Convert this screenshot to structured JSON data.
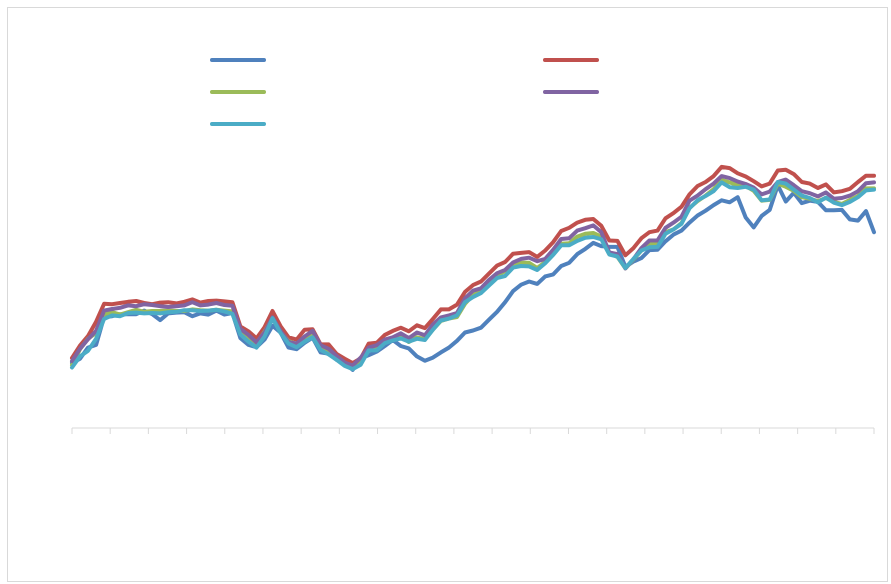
{
  "chart_data": {
    "type": "line",
    "title": "",
    "xlabel": "",
    "ylabel": "",
    "ylim": [
      0,
      100
    ],
    "x": [
      0,
      1,
      2,
      3,
      4,
      5,
      6,
      7,
      8,
      9,
      10,
      11,
      12,
      13,
      14,
      15,
      16,
      17,
      18,
      19,
      20,
      21,
      22,
      23,
      24,
      25,
      26,
      27,
      28,
      29,
      30,
      31,
      32,
      33,
      34,
      35,
      36,
      37,
      38,
      39,
      40,
      41,
      42,
      43,
      44,
      45,
      46,
      47,
      48,
      49,
      50,
      51,
      52,
      53,
      54,
      55,
      56,
      57,
      58,
      59,
      60,
      61,
      62,
      63,
      64,
      65,
      66,
      67,
      68,
      69,
      70,
      71,
      72,
      73,
      74,
      75,
      76,
      77,
      78,
      79,
      80,
      81,
      82,
      83,
      84,
      85,
      86,
      87,
      88,
      89,
      90,
      91,
      92,
      93,
      94,
      95,
      96,
      97,
      98,
      99,
      100
    ],
    "x_tick_count": 22,
    "grid": false,
    "legend_position": "top",
    "series": [
      {
        "color": "#4f81bd",
        "values": [
          16.3,
          17.4,
          20.2,
          20.9,
          27.9,
          28.1,
          28.6,
          28.6,
          28.6,
          29.5,
          28.6,
          27.1,
          28.8,
          29.0,
          29.1,
          28.1,
          28.8,
          28.5,
          29.5,
          28.5,
          28.9,
          22.6,
          20.9,
          20.3,
          22.2,
          25.7,
          24.0,
          20.2,
          19.8,
          21.4,
          22.7,
          19.0,
          18.7,
          17.1,
          16.4,
          14.6,
          17.5,
          18.3,
          19.2,
          20.6,
          22.1,
          20.6,
          20.0,
          18.0,
          16.9,
          17.7,
          19.0,
          20.2,
          21.9,
          24.0,
          24.5,
          25.2,
          27.2,
          29.2,
          31.6,
          34.4,
          36.0,
          36.8,
          36.2,
          38.1,
          38.6,
          40.7,
          41.5,
          43.7,
          45.0,
          46.5,
          45.7,
          45.5,
          45.5,
          40.5,
          41.8,
          42.7,
          44.7,
          44.8,
          46.9,
          48.6,
          49.6,
          51.6,
          53.4,
          54.6,
          56.0,
          57.2,
          56.7,
          58.0,
          52.9,
          50.4,
          53.3,
          54.8,
          61.0,
          56.9,
          59.1,
          56.5,
          57.1,
          56.8,
          54.7,
          54.7,
          54.8,
          52.4,
          52.1,
          54.5,
          49.2
        ]
      },
      {
        "color": "#c0504d",
        "values": [
          17.6,
          20.7,
          23.1,
          26.7,
          31.2,
          31.1,
          31.4,
          31.7,
          31.9,
          31.4,
          31.1,
          31.5,
          31.6,
          31.3,
          31.7,
          32.3,
          31.5,
          31.9,
          32.0,
          31.8,
          31.6,
          25.5,
          24.3,
          22.5,
          25.3,
          29.4,
          25.6,
          22.8,
          22.2,
          24.7,
          24.8,
          21.0,
          21.0,
          18.6,
          17.4,
          16.3,
          17.5,
          21.2,
          21.4,
          23.4,
          24.4,
          25.2,
          24.3,
          25.8,
          25.1,
          27.4,
          29.8,
          29.8,
          31.0,
          34.2,
          35.9,
          36.8,
          38.8,
          40.8,
          41.7,
          43.8,
          44.0,
          44.2,
          43.0,
          44.6,
          46.7,
          49.5,
          50.3,
          51.6,
          52.3,
          52.5,
          50.8,
          47.1,
          47.0,
          43.4,
          45.2,
          47.7,
          49.2,
          49.6,
          52.7,
          54.0,
          55.6,
          58.7,
          60.8,
          61.8,
          63.3,
          65.6,
          65.3,
          64.0,
          63.2,
          62.0,
          60.7,
          61.4,
          64.7,
          64.9,
          63.8,
          61.8,
          61.4,
          60.3,
          61.2,
          59.2,
          59.5,
          60.1,
          61.8,
          63.4,
          63.4
        ]
      },
      {
        "color": "#9bbb59",
        "values": [
          15.8,
          19.8,
          22.4,
          23.9,
          28.6,
          29.1,
          28.5,
          29.1,
          29.7,
          29.2,
          29.4,
          29.4,
          29.5,
          29.4,
          29.4,
          29.8,
          29.6,
          29.5,
          29.7,
          29.5,
          29.3,
          24.7,
          22.4,
          21.2,
          24.2,
          27.6,
          24.2,
          21.8,
          21.1,
          22.6,
          23.4,
          19.8,
          19.5,
          17.5,
          16.4,
          15.4,
          16.3,
          19.6,
          20.5,
          21.8,
          22.6,
          23.2,
          21.6,
          22.8,
          22.3,
          24.7,
          26.9,
          27.5,
          27.9,
          31.2,
          33.4,
          34.5,
          36.6,
          38.4,
          39.4,
          41.3,
          41.5,
          41.5,
          40.2,
          41.7,
          43.9,
          46.3,
          46.4,
          48.1,
          48.8,
          49.0,
          48.1,
          44.0,
          43.0,
          40.1,
          42.3,
          44.6,
          46.1,
          46.1,
          49.2,
          49.9,
          51.5,
          55.3,
          57.0,
          58.4,
          60.0,
          62.3,
          61.7,
          61.0,
          60.8,
          59.6,
          57.1,
          57.3,
          61.4,
          60.6,
          59.6,
          58.0,
          57.6,
          57.0,
          57.8,
          56.8,
          56.3,
          57.3,
          58.3,
          60.2,
          60.2
        ]
      },
      {
        "color": "#8064a2",
        "values": [
          16.8,
          19.9,
          22.3,
          24.4,
          29.5,
          29.9,
          30.2,
          30.8,
          30.6,
          31.1,
          30.9,
          30.6,
          30.4,
          30.6,
          30.8,
          31.6,
          30.8,
          31.0,
          31.4,
          30.9,
          30.7,
          24.9,
          23.4,
          21.5,
          24.0,
          27.8,
          24.4,
          21.6,
          21.2,
          23.0,
          24.4,
          20.8,
          19.9,
          18.1,
          16.4,
          15.7,
          17.7,
          20.2,
          20.8,
          22.2,
          22.8,
          23.8,
          22.6,
          24.0,
          23.3,
          26.0,
          27.8,
          28.3,
          28.9,
          32.6,
          34.5,
          35.1,
          37.2,
          38.9,
          39.7,
          41.6,
          42.5,
          42.8,
          41.9,
          42.5,
          44.8,
          47.5,
          47.7,
          49.6,
          50.2,
          50.9,
          49.2,
          44.1,
          43.7,
          40.1,
          42.4,
          45.2,
          47.1,
          47.1,
          50.3,
          51.6,
          53.1,
          57.1,
          58.4,
          60.0,
          61.4,
          63.3,
          62.8,
          61.9,
          61.3,
          60.4,
          58.7,
          59.4,
          61.8,
          62.4,
          61.0,
          59.5,
          59.0,
          58.2,
          59.2,
          57.6,
          57.8,
          58.4,
          59.5,
          61.5,
          61.7
        ]
      },
      {
        "color": "#4bacc6",
        "values": [
          15.2,
          18.0,
          19.4,
          22.4,
          27.4,
          28.3,
          28.1,
          28.9,
          29.0,
          28.8,
          28.9,
          28.8,
          29.1,
          29.2,
          29.6,
          29.6,
          29.4,
          29.5,
          29.7,
          29.3,
          28.7,
          23.5,
          21.7,
          20.2,
          23.0,
          27.6,
          23.9,
          21.2,
          20.3,
          21.7,
          22.8,
          19.6,
          18.5,
          17.1,
          15.6,
          14.8,
          15.9,
          19.5,
          19.5,
          21.3,
          22.0,
          22.5,
          21.7,
          22.4,
          22.1,
          24.7,
          27.0,
          27.5,
          28.3,
          31.6,
          32.9,
          33.9,
          35.8,
          37.7,
          38.2,
          40.3,
          40.7,
          40.6,
          39.7,
          41.4,
          43.5,
          45.9,
          45.9,
          47.0,
          47.8,
          48.0,
          47.4,
          43.6,
          43.1,
          40.2,
          42.5,
          44.6,
          45.4,
          45.5,
          48.8,
          49.9,
          51.3,
          55.2,
          57.2,
          58.3,
          59.5,
          61.7,
          60.5,
          60.3,
          60.6,
          59.9,
          57.2,
          57.4,
          61.8,
          61.4,
          59.9,
          58.4,
          57.8,
          56.7,
          57.9,
          56.6,
          56.0,
          56.8,
          58.0,
          59.7,
          59.9
        ]
      }
    ]
  }
}
